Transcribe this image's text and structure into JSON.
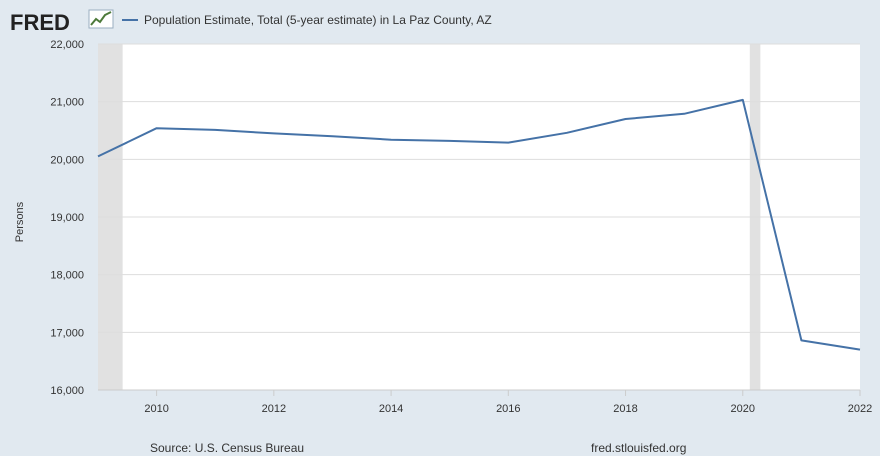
{
  "logo": {
    "text": "FRED"
  },
  "legend": {
    "label": "Population Estimate, Total (5-year estimate) in La Paz County, AZ"
  },
  "footer": {
    "source": "Source: U.S. Census Bureau",
    "site": "fred.stlouisfed.org"
  },
  "colors": {
    "line": "#4572a7",
    "plot_bg": "#ffffff",
    "page_bg": "#e1e9f0",
    "recession": "#e1e1e1",
    "grid": "#dddddd"
  },
  "chart_data": {
    "type": "line",
    "ylabel": "Persons",
    "xlabel": "",
    "xlim": [
      2009,
      2022
    ],
    "ylim": [
      16000,
      22000
    ],
    "x_ticks": [
      2010,
      2012,
      2014,
      2016,
      2018,
      2020,
      2022
    ],
    "y_ticks": [
      16000,
      17000,
      18000,
      19000,
      20000,
      21000,
      22000
    ],
    "y_tick_labels": [
      "16,000",
      "17,000",
      "18,000",
      "19,000",
      "20,000",
      "21,000",
      "22,000"
    ],
    "recession_bands": [
      [
        2009.0,
        2009.42
      ],
      [
        2020.12,
        2020.3
      ]
    ],
    "series": [
      {
        "name": "Population Estimate, Total (5-year estimate) in La Paz County, AZ",
        "x": [
          2009,
          2010,
          2011,
          2012,
          2013,
          2014,
          2015,
          2016,
          2017,
          2018,
          2019,
          2020,
          2021,
          2022
        ],
        "values": [
          20050,
          20540,
          20510,
          20450,
          20400,
          20340,
          20320,
          20290,
          20460,
          20700,
          20790,
          21030,
          16860,
          16700
        ]
      }
    ]
  }
}
